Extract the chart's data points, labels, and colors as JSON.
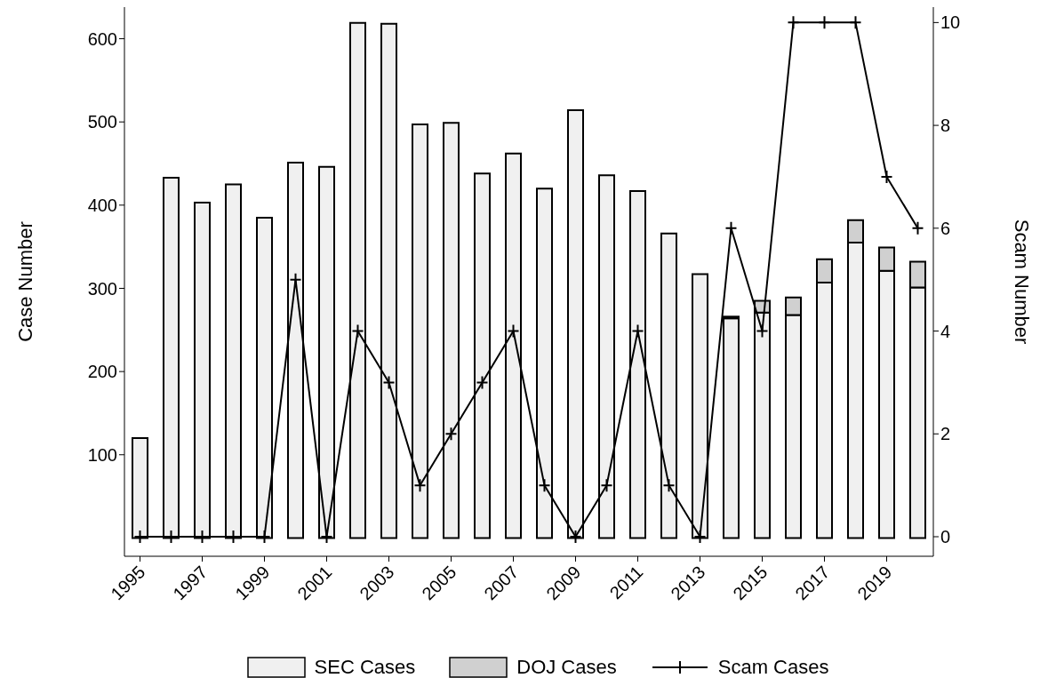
{
  "chart_data": {
    "type": "bar",
    "stacked": true,
    "xlabel": null,
    "ylabel": "Case Number",
    "y2label": "Scam Number",
    "x": [
      1995,
      1996,
      1997,
      1998,
      1999,
      2000,
      2001,
      2002,
      2003,
      2004,
      2005,
      2006,
      2007,
      2008,
      2009,
      2010,
      2011,
      2012,
      2013,
      2014,
      2015,
      2016,
      2017,
      2018,
      2019,
      2020
    ],
    "xlim": [
      1994.5,
      2020.5
    ],
    "xticks": [
      1995,
      1997,
      1999,
      2001,
      2003,
      2005,
      2007,
      2009,
      2011,
      2013,
      2015,
      2017,
      2019
    ],
    "ylim": [
      -22,
      638
    ],
    "yticks": [
      100,
      200,
      300,
      400,
      500,
      600
    ],
    "y2lim": [
      -0.38,
      10.3
    ],
    "y2ticks": [
      0,
      2,
      4,
      6,
      8,
      10
    ],
    "series": [
      {
        "name": "SEC Cases",
        "color": "#f0f0f0",
        "values": [
          120,
          433,
          403,
          425,
          385,
          451,
          446,
          619,
          618,
          497,
          499,
          438,
          462,
          420,
          514,
          436,
          417,
          366,
          317,
          264,
          271,
          268,
          307,
          355,
          321,
          301
        ]
      },
      {
        "name": "DOJ Cases",
        "color": "#d0d0d0",
        "values": [
          0,
          0,
          0,
          0,
          0,
          0,
          0,
          0,
          0,
          0,
          0,
          0,
          0,
          0,
          0,
          0,
          0,
          0,
          0,
          2,
          14,
          21,
          28,
          27,
          28,
          31
        ]
      },
      {
        "name": "Scam Cases",
        "type": "line",
        "axis": "y2",
        "color": "#000000",
        "marker": "cross",
        "line_style": "solid",
        "values": [
          0,
          0,
          0,
          0,
          0,
          5,
          0,
          4,
          3,
          1,
          2,
          3,
          4,
          1,
          0,
          1,
          4,
          1,
          0,
          6,
          4,
          10,
          10,
          10,
          7,
          6
        ]
      }
    ],
    "legend": "bottom"
  }
}
